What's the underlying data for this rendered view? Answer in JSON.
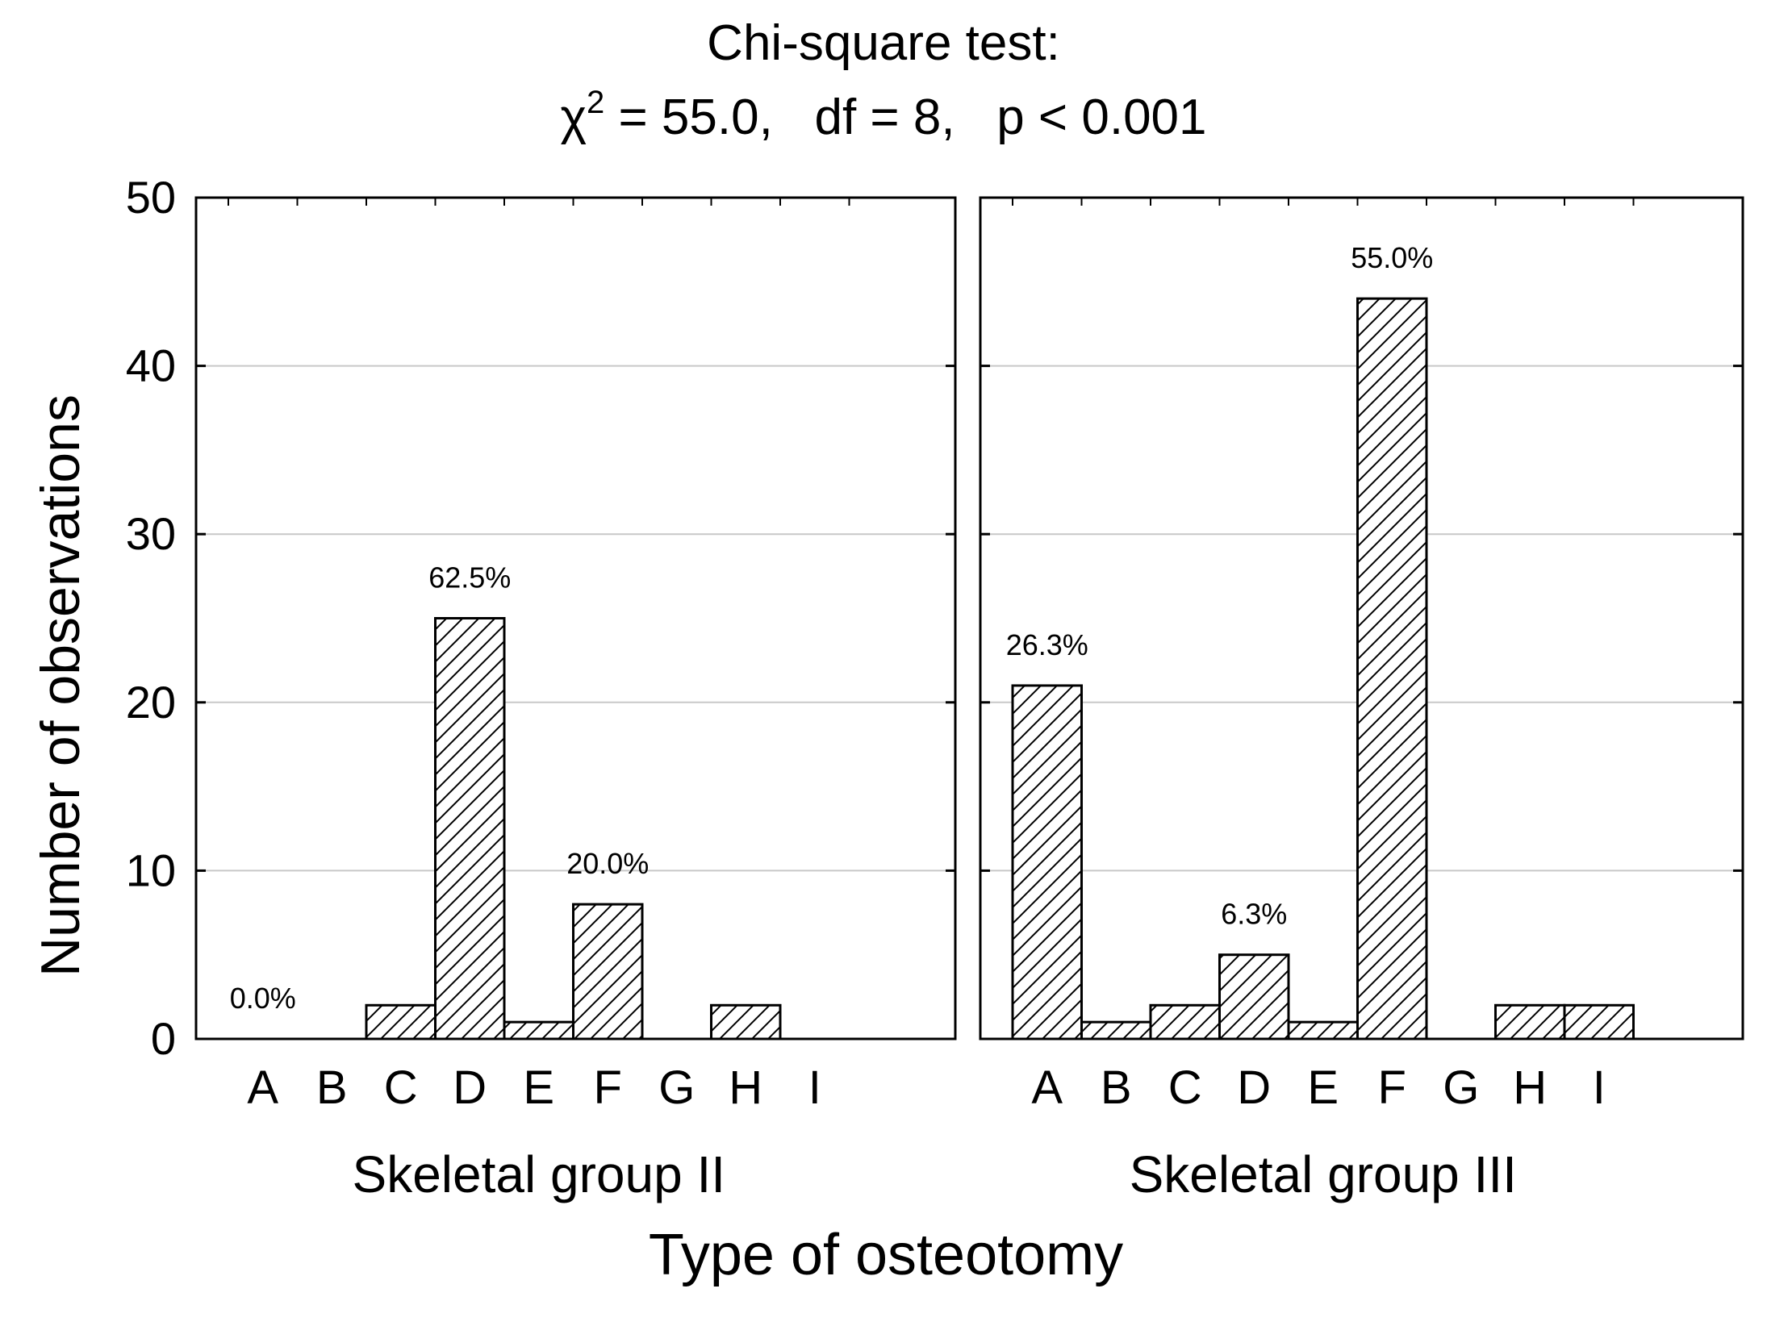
{
  "chart_data": {
    "type": "bar",
    "title_line1": "Chi-square test:",
    "title_chi": "χ",
    "title_sup": "2",
    "title_rest": " = 55.0,   df = 8,   p < 0.001",
    "xlabel": "Type of osteotomy",
    "ylabel": "Number of observations",
    "ylim": [
      0,
      50
    ],
    "yticks": [
      "0",
      "10",
      "20",
      "30",
      "40",
      "50"
    ],
    "categories": [
      "A",
      "B",
      "C",
      "D",
      "E",
      "F",
      "G",
      "H",
      "I"
    ],
    "bar_pattern": "diagonal-hatch",
    "grid": true,
    "panels": [
      {
        "name": "Skeletal group II",
        "values": [
          0,
          0,
          2,
          25,
          1,
          8,
          0,
          2,
          0
        ],
        "labels": [
          {
            "category": "A",
            "text": "0.0%"
          },
          {
            "category": "D",
            "text": "62.5%"
          },
          {
            "category": "F",
            "text": "20.0%"
          }
        ]
      },
      {
        "name": "Skeletal group III",
        "values": [
          21,
          1,
          2,
          5,
          1,
          44,
          0,
          2,
          2
        ],
        "labels": [
          {
            "category": "A",
            "text": "26.3%"
          },
          {
            "category": "D",
            "text": "6.3%"
          },
          {
            "category": "F",
            "text": "55.0%"
          }
        ]
      }
    ]
  }
}
